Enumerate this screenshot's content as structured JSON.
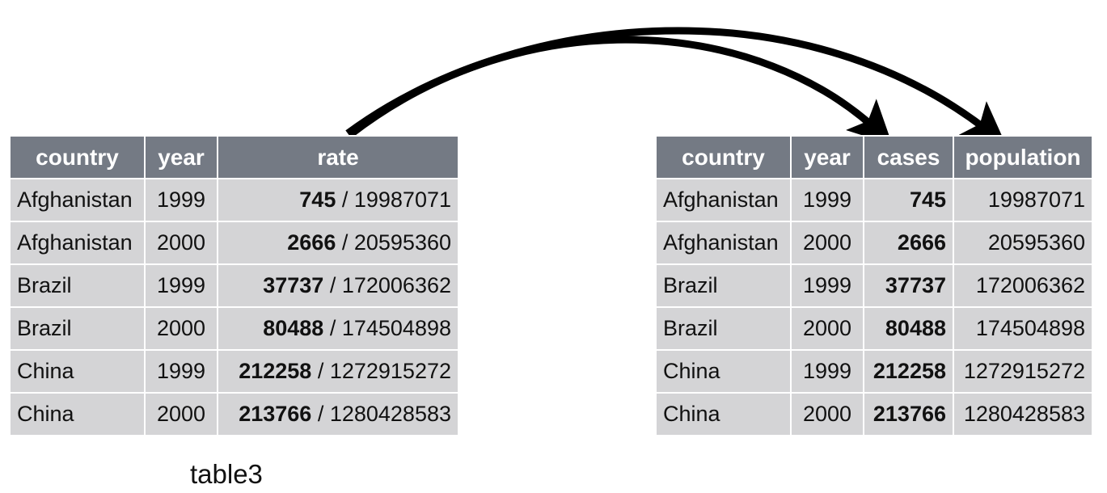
{
  "left_table": {
    "name": "table3",
    "headers": [
      "country",
      "year",
      "rate"
    ],
    "rows": [
      {
        "country": "Afghanistan",
        "year": "1999",
        "cases": "745",
        "population": "19987071"
      },
      {
        "country": "Afghanistan",
        "year": "2000",
        "cases": "2666",
        "population": "20595360"
      },
      {
        "country": "Brazil",
        "year": "1999",
        "cases": "37737",
        "population": "172006362"
      },
      {
        "country": "Brazil",
        "year": "2000",
        "cases": "80488",
        "population": "174504898"
      },
      {
        "country": "China",
        "year": "1999",
        "cases": "212258",
        "population": "1272915272"
      },
      {
        "country": "China",
        "year": "2000",
        "cases": "213766",
        "population": "1280428583"
      }
    ],
    "separator": " / "
  },
  "right_table": {
    "headers": [
      "country",
      "year",
      "cases",
      "population"
    ],
    "rows": [
      {
        "country": "Afghanistan",
        "year": "1999",
        "cases": "745",
        "population": "19987071"
      },
      {
        "country": "Afghanistan",
        "year": "2000",
        "cases": "2666",
        "population": "20595360"
      },
      {
        "country": "Brazil",
        "year": "1999",
        "cases": "37737",
        "population": "172006362"
      },
      {
        "country": "Brazil",
        "year": "2000",
        "cases": "80488",
        "population": "174504898"
      },
      {
        "country": "China",
        "year": "1999",
        "cases": "212258",
        "population": "1272915272"
      },
      {
        "country": "China",
        "year": "2000",
        "cases": "213766",
        "population": "1280428583"
      }
    ]
  },
  "colors": {
    "header": "#747a84",
    "cell": "#d4d4d6",
    "arrow": "#000000"
  }
}
